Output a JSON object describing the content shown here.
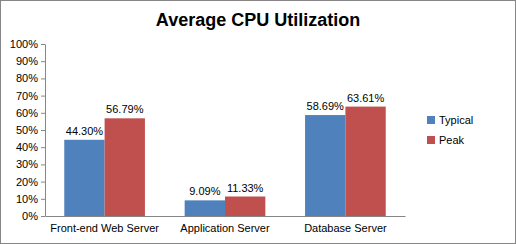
{
  "chart_data": {
    "type": "bar",
    "title": "Average CPU Utilization",
    "categories": [
      "Front-end Web Server",
      "Application Server",
      "Database Server"
    ],
    "series": [
      {
        "name": "Typical",
        "color": "#4f81bd",
        "values": [
          44.3,
          9.09,
          58.69
        ],
        "value_labels": [
          "44.30%",
          "9.09%",
          "58.69%"
        ]
      },
      {
        "name": "Peak",
        "color": "#c0504d",
        "values": [
          56.79,
          11.33,
          63.61
        ],
        "value_labels": [
          "56.79%",
          "11.33%",
          "63.61%"
        ]
      }
    ],
    "ylim": [
      0,
      100
    ],
    "yticks": [
      {
        "value": 0,
        "label": "0%"
      },
      {
        "value": 10,
        "label": "10%"
      },
      {
        "value": 20,
        "label": "20%"
      },
      {
        "value": 30,
        "label": "30%"
      },
      {
        "value": 40,
        "label": "40%"
      },
      {
        "value": 50,
        "label": "50%"
      },
      {
        "value": 60,
        "label": "60%"
      },
      {
        "value": 70,
        "label": "70%"
      },
      {
        "value": 80,
        "label": "80%"
      },
      {
        "value": 90,
        "label": "90%"
      },
      {
        "value": 100,
        "label": "100%"
      }
    ],
    "grid": false,
    "legend": "right",
    "data_labels": true
  }
}
